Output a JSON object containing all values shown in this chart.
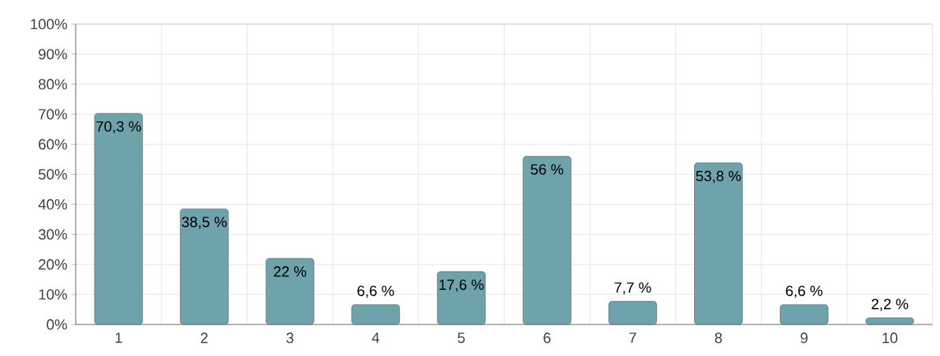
{
  "chart_data": {
    "type": "bar",
    "categories": [
      "1",
      "2",
      "3",
      "4",
      "5",
      "6",
      "7",
      "8",
      "9",
      "10"
    ],
    "values": [
      70.3,
      38.5,
      22,
      6.6,
      17.6,
      56,
      7.7,
      53.8,
      6.6,
      2.2
    ],
    "value_labels": [
      "70,3 %",
      "38,5 %",
      "22 %",
      "6,6 %",
      "17,6 %",
      "56 %",
      "7,7 %",
      "53,8 %",
      "6,6 %",
      "2,2 %"
    ],
    "color": "#6fa3ab",
    "ylim": [
      0,
      100
    ],
    "yticks": [
      {
        "value": 0,
        "label": "0%"
      },
      {
        "value": 10,
        "label": "10%"
      },
      {
        "value": 20,
        "label": "20%"
      },
      {
        "value": 30,
        "label": "30%"
      },
      {
        "value": 40,
        "label": "40%"
      },
      {
        "value": 50,
        "label": "50%"
      },
      {
        "value": 60,
        "label": "60%"
      },
      {
        "value": 70,
        "label": "70%"
      },
      {
        "value": 80,
        "label": "80%"
      },
      {
        "value": 90,
        "label": "90%"
      },
      {
        "value": 100,
        "label": "100%"
      }
    ],
    "grid": true
  }
}
